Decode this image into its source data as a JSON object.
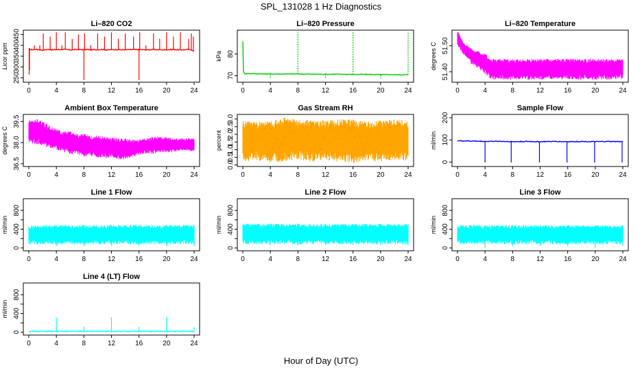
{
  "figure": {
    "title": "SPL_131028  1 Hz Diagnostics",
    "xlabel": "Hour of Day (UTC)"
  },
  "chart_data": [
    {
      "id": "co2",
      "type": "line",
      "title": "Li–820 CO2",
      "ylabel": "Licor ppm",
      "xlim": [
        0,
        24
      ],
      "ylim": [
        230,
        470
      ],
      "xticks": [
        0,
        4,
        8,
        12,
        16,
        20,
        24
      ],
      "xtick_labels": [
        "0",
        "4",
        "8",
        "12",
        "16",
        "20",
        "24"
      ],
      "yticks": [
        250,
        300,
        350,
        400,
        450
      ],
      "ytick_labels": [
        "250",
        "300",
        "350",
        "400",
        "450"
      ],
      "color": "#ff0000",
      "x": [
        0,
        0.3,
        0.6,
        1,
        1.5,
        2,
        2.5,
        3,
        3.5,
        4,
        4.5,
        5,
        5.5,
        6,
        6.5,
        7,
        7.5,
        8,
        8.5,
        9,
        9.5,
        10,
        10.5,
        11,
        11.5,
        12,
        12.5,
        13,
        13.5,
        14,
        14.5,
        15,
        15.5,
        16,
        16.5,
        17,
        17.5,
        18,
        18.5,
        19,
        19.5,
        20,
        20.5,
        21,
        21.5,
        22,
        22.5,
        23,
        23.5,
        24
      ],
      "y": [
        385,
        380,
        380,
        382,
        380,
        378,
        380,
        381,
        379,
        380,
        380,
        382,
        380,
        379,
        380,
        381,
        380,
        380,
        381,
        379,
        380,
        380,
        381,
        380,
        379,
        380,
        380,
        381,
        379,
        380,
        380,
        380,
        381,
        380,
        380,
        379,
        380,
        381,
        380,
        380,
        379,
        380,
        380,
        381,
        380,
        379,
        380,
        380,
        381,
        372
      ],
      "spikes": [
        {
          "x": 0.05,
          "y": 265
        },
        {
          "x": 0.1,
          "y": 285
        },
        {
          "x": 0.8,
          "y": 400
        },
        {
          "x": 1.6,
          "y": 400
        },
        {
          "x": 2.1,
          "y": 455
        },
        {
          "x": 3.1,
          "y": 440
        },
        {
          "x": 4.0,
          "y": 460
        },
        {
          "x": 4.8,
          "y": 400
        },
        {
          "x": 5.3,
          "y": 460
        },
        {
          "x": 6.3,
          "y": 430
        },
        {
          "x": 7.2,
          "y": 450
        },
        {
          "x": 8.0,
          "y": 240
        },
        {
          "x": 8.1,
          "y": 455
        },
        {
          "x": 9.0,
          "y": 400
        },
        {
          "x": 10.0,
          "y": 455
        },
        {
          "x": 11.0,
          "y": 440
        },
        {
          "x": 12.0,
          "y": 460
        },
        {
          "x": 13.0,
          "y": 430
        },
        {
          "x": 14.0,
          "y": 455
        },
        {
          "x": 15.2,
          "y": 440
        },
        {
          "x": 16.0,
          "y": 240
        },
        {
          "x": 16.1,
          "y": 460
        },
        {
          "x": 17.0,
          "y": 400
        },
        {
          "x": 18.1,
          "y": 455
        },
        {
          "x": 19.0,
          "y": 430
        },
        {
          "x": 20.0,
          "y": 460
        },
        {
          "x": 21.0,
          "y": 440
        },
        {
          "x": 22.0,
          "y": 460
        },
        {
          "x": 23.2,
          "y": 430
        },
        {
          "x": 23.6,
          "y": 455
        },
        {
          "x": 23.9,
          "y": 440
        }
      ]
    },
    {
      "id": "pressure",
      "type": "line",
      "title": "Li–820 Pressure",
      "ylabel": "kPa",
      "xlim": [
        0,
        24
      ],
      "ylim": [
        67,
        91
      ],
      "xticks": [
        0,
        4,
        8,
        12,
        16,
        20,
        24
      ],
      "xtick_labels": [
        "0",
        "4",
        "8",
        "12",
        "16",
        "20",
        "24"
      ],
      "yticks": [
        70,
        80
      ],
      "ytick_labels": [
        "70",
        "80"
      ],
      "color": "#00cc00",
      "x": [
        0,
        0.05,
        0.15,
        0.3,
        1,
        2,
        4,
        6,
        8,
        10,
        12,
        14,
        16,
        18,
        20,
        22,
        24
      ],
      "y": [
        86,
        72,
        71.5,
        71,
        71,
        70.9,
        70.8,
        70.8,
        70.8,
        70.7,
        70.7,
        70.7,
        70.6,
        70.6,
        70.5,
        70.5,
        70.4
      ],
      "spikes": [
        {
          "x": 4.0,
          "y": 68.5
        },
        {
          "x": 8.0,
          "y": 90
        },
        {
          "x": 12.0,
          "y": 68.5
        },
        {
          "x": 16.0,
          "y": 90
        },
        {
          "x": 20.0,
          "y": 68.5
        },
        {
          "x": 24.0,
          "y": 90
        }
      ]
    },
    {
      "id": "licor_temp",
      "type": "area",
      "title": "Li–820 Temperature",
      "ylabel": "degrees C",
      "xlim": [
        0,
        24
      ],
      "ylim": [
        51.36,
        51.56
      ],
      "xticks": [
        0,
        4,
        8,
        12,
        16,
        20,
        24
      ],
      "xtick_labels": [
        "0",
        "4",
        "8",
        "12",
        "16",
        "20",
        "24"
      ],
      "yticks": [
        51.4,
        51.5
      ],
      "ytick_labels": [
        "51.40",
        "51.50"
      ],
      "color": "#ff00ff",
      "x": [
        0,
        0.5,
        1,
        1.5,
        2,
        2.5,
        3,
        3.5,
        4,
        4.5,
        5,
        6,
        8,
        10,
        12,
        14,
        16,
        18,
        20,
        22,
        24
      ],
      "upper": [
        51.56,
        51.53,
        51.51,
        51.5,
        51.49,
        51.48,
        51.48,
        51.47,
        51.47,
        51.46,
        51.45,
        51.45,
        51.45,
        51.45,
        51.45,
        51.45,
        51.45,
        51.45,
        51.45,
        51.45,
        51.45
      ],
      "lower": [
        51.5,
        51.48,
        51.46,
        51.45,
        51.43,
        51.42,
        51.41,
        51.4,
        51.39,
        51.38,
        51.37,
        51.37,
        51.37,
        51.37,
        51.37,
        51.37,
        51.37,
        51.37,
        51.37,
        51.37,
        51.37
      ]
    },
    {
      "id": "box_temp",
      "type": "area",
      "title": "Ambient Box Temperature",
      "ylabel": "degrees C",
      "xlim": [
        0,
        24
      ],
      "ylim": [
        36.3,
        40.0
      ],
      "xticks": [
        0,
        4,
        8,
        12,
        16,
        20,
        24
      ],
      "xtick_labels": [
        "0",
        "4",
        "8",
        "12",
        "16",
        "20",
        "24"
      ],
      "yticks": [
        36.5,
        38.0,
        39.5
      ],
      "ytick_labels": [
        "36.5",
        "38.0",
        "39.5"
      ],
      "color": "#ff00ff",
      "x": [
        0,
        1,
        2,
        3,
        4,
        5,
        6,
        7,
        8,
        9,
        10,
        11,
        12,
        13,
        14,
        15,
        16,
        17,
        18,
        19,
        20,
        21,
        22,
        23,
        24
      ],
      "upper": [
        39.6,
        39.7,
        39.5,
        39.2,
        39.0,
        38.8,
        38.8,
        38.6,
        38.6,
        38.5,
        38.5,
        38.4,
        38.4,
        38.3,
        38.3,
        38.2,
        38.2,
        38.3,
        38.4,
        38.4,
        38.4,
        38.3,
        38.3,
        38.3,
        38.3
      ],
      "lower": [
        38.0,
        37.9,
        37.8,
        37.6,
        37.5,
        37.3,
        37.2,
        37.1,
        37.0,
        37.0,
        36.9,
        36.9,
        36.9,
        36.8,
        36.8,
        37.0,
        37.1,
        37.2,
        37.2,
        37.3,
        37.3,
        37.3,
        37.4,
        37.4,
        37.4
      ]
    },
    {
      "id": "rh",
      "type": "area",
      "title": "Gas Stream RH",
      "ylabel": "percent",
      "xlim": [
        0,
        24
      ],
      "ylim": [
        -0.1,
        3.3
      ],
      "xticks": [
        0,
        4,
        8,
        12,
        16,
        20,
        24
      ],
      "xtick_labels": [
        "0",
        "4",
        "8",
        "12",
        "16",
        "20",
        "24"
      ],
      "yticks": [
        0.0,
        0.5,
        1.0,
        1.5,
        2.0,
        2.5,
        3.0
      ],
      "ytick_labels": [
        "0.0",
        "0.5",
        "1.0",
        "1.5",
        "2.0",
        "2.5",
        "3.0"
      ],
      "color": "#ffa500",
      "color2": "#8b6914",
      "x": [
        0,
        2,
        4,
        6,
        8,
        10,
        12,
        14,
        16,
        18,
        20,
        22,
        24
      ],
      "upper": [
        2.9,
        2.8,
        2.9,
        3.1,
        3.0,
        2.9,
        2.9,
        3.0,
        3.0,
        2.8,
        2.9,
        3.0,
        2.9
      ],
      "lower": [
        0.2,
        0.3,
        0.1,
        0.2,
        0.3,
        0.2,
        0.3,
        0.2,
        0.1,
        0.3,
        0.2,
        0.3,
        0.3
      ]
    },
    {
      "id": "sample_flow",
      "type": "line",
      "title": "Sample Flow",
      "ylabel": "ml/min",
      "xlim": [
        0,
        24
      ],
      "ylim": [
        -20,
        215
      ],
      "xticks": [
        0,
        4,
        8,
        12,
        16,
        20,
        24
      ],
      "xtick_labels": [
        "0",
        "4",
        "8",
        "12",
        "16",
        "20",
        "24"
      ],
      "yticks": [
        0,
        100,
        200
      ],
      "ytick_labels": [
        "0",
        "100",
        "200"
      ],
      "color": "#0000ff",
      "x": [
        0,
        2,
        4,
        6,
        8,
        10,
        12,
        14,
        16,
        18,
        20,
        22,
        24
      ],
      "y": [
        96,
        95,
        93,
        94,
        92,
        93,
        92,
        93,
        92,
        93,
        92,
        93,
        92
      ],
      "spikes": [
        {
          "x": 4.0,
          "y": -2
        },
        {
          "x": 7.8,
          "y": -2
        },
        {
          "x": 11.9,
          "y": -2
        },
        {
          "x": 15.9,
          "y": -2
        },
        {
          "x": 19.9,
          "y": -2
        },
        {
          "x": 23.9,
          "y": -2
        }
      ]
    },
    {
      "id": "line1",
      "type": "area",
      "title": "Line 1 Flow",
      "ylabel": "ml/min",
      "xlim": [
        0,
        24
      ],
      "ylim": [
        -60,
        1050
      ],
      "xticks": [
        0,
        4,
        8,
        12,
        16,
        20,
        24
      ],
      "xtick_labels": [
        "0",
        "4",
        "8",
        "12",
        "16",
        "20",
        "24"
      ],
      "yticks": [
        0,
        200,
        400,
        600,
        800
      ],
      "ytick_labels": [
        "0",
        "400",
        "800"
      ],
      "ytick_label_values": [
        0,
        400,
        800
      ],
      "color": "#00ffff",
      "x": [
        0,
        24
      ],
      "upper": [
        490,
        490
      ],
      "lower": [
        80,
        80
      ],
      "spikes": [
        {
          "x": 4.0,
          "y": 40
        },
        {
          "x": 8.0,
          "y": 40
        },
        {
          "x": 12.0,
          "y": 40
        },
        {
          "x": 16.0,
          "y": 40
        },
        {
          "x": 20.0,
          "y": 40
        },
        {
          "x": 24.0,
          "y": 40
        }
      ]
    },
    {
      "id": "line2",
      "type": "area",
      "title": "Line 2 Flow",
      "ylabel": "ml/min",
      "xlim": [
        0,
        24
      ],
      "ylim": [
        -60,
        1050
      ],
      "xticks": [
        0,
        4,
        8,
        12,
        16,
        20,
        24
      ],
      "xtick_labels": [
        "0",
        "4",
        "8",
        "12",
        "16",
        "20",
        "24"
      ],
      "yticks": [
        0,
        200,
        400,
        600,
        800
      ],
      "ytick_labels": [
        "0",
        "400",
        "800"
      ],
      "ytick_label_values": [
        0,
        400,
        800
      ],
      "color": "#00ffff",
      "x": [
        0,
        24
      ],
      "upper": [
        520,
        510
      ],
      "lower": [
        80,
        80
      ],
      "spikes": [
        {
          "x": 4.0,
          "y": 60
        },
        {
          "x": 8.0,
          "y": 60
        },
        {
          "x": 12.0,
          "y": 60
        },
        {
          "x": 16.0,
          "y": 60
        },
        {
          "x": 20.0,
          "y": 60
        },
        {
          "x": 24.0,
          "y": 60
        }
      ]
    },
    {
      "id": "line3",
      "type": "area",
      "title": "Line 3 Flow",
      "ylabel": "ml/min",
      "xlim": [
        0,
        24
      ],
      "ylim": [
        -60,
        1050
      ],
      "xticks": [
        0,
        4,
        8,
        12,
        16,
        20,
        24
      ],
      "xtick_labels": [
        "0",
        "4",
        "8",
        "12",
        "16",
        "20",
        "24"
      ],
      "yticks": [
        0,
        200,
        400,
        600,
        800
      ],
      "ytick_labels": [
        "0",
        "400",
        "800"
      ],
      "ytick_label_values": [
        0,
        400,
        800
      ],
      "color": "#00ffff",
      "x": [
        0,
        24
      ],
      "upper": [
        490,
        480
      ],
      "lower": [
        80,
        80
      ],
      "spikes": [
        {
          "x": 4.0,
          "y": 0
        },
        {
          "x": 8.0,
          "y": 40
        },
        {
          "x": 12.0,
          "y": 40
        },
        {
          "x": 16.0,
          "y": 40
        },
        {
          "x": 20.0,
          "y": 0
        },
        {
          "x": 24.0,
          "y": 40
        }
      ]
    },
    {
      "id": "line4",
      "type": "line",
      "title": "Line 4 (LT) Flow",
      "ylabel": "ml/min",
      "xlim": [
        0,
        24
      ],
      "ylim": [
        -60,
        1050
      ],
      "xticks": [
        0,
        4,
        8,
        12,
        16,
        20,
        24
      ],
      "xtick_labels": [
        "0",
        "4",
        "8",
        "12",
        "16",
        "20",
        "24"
      ],
      "yticks": [
        0,
        200,
        400,
        600,
        800
      ],
      "ytick_labels": [
        "0",
        "400",
        "800"
      ],
      "ytick_label_values": [
        0,
        400,
        800
      ],
      "color": "#00ffff",
      "x": [
        0,
        24
      ],
      "y": [
        20,
        20
      ],
      "spikes": [
        {
          "x": 4.0,
          "y": 310
        },
        {
          "x": 8.0,
          "y": 120
        },
        {
          "x": 12.0,
          "y": 320
        },
        {
          "x": 16.0,
          "y": 110
        },
        {
          "x": 20.0,
          "y": 320
        },
        {
          "x": 24.0,
          "y": 110
        }
      ]
    }
  ]
}
